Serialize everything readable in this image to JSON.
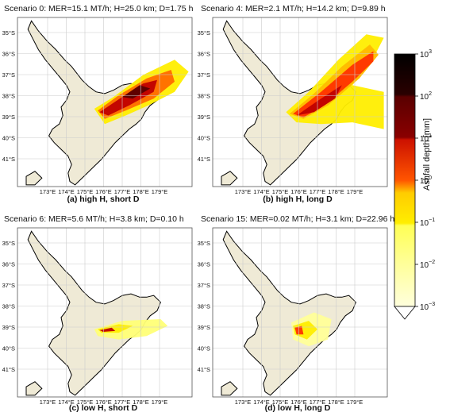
{
  "panels": [
    {
      "title": "Scenario 0:  MER=15.1 MT/h; H=25.0 km; D=1.75 h",
      "caption": "(a) high H, short D"
    },
    {
      "title": "Scenario 4:  MER=2.1 MT/h; H=14.2 km; D=9.89 h",
      "caption": "(b) high H, long D"
    },
    {
      "title": "Scenario 6:  MER=5.6 MT/h; H=3.8 km; D=0.10 h",
      "caption": "(c) low H, short D"
    },
    {
      "title": "Scenario 15:  MER=0.02 MT/h; H=3.1 km; D=22.96 h",
      "caption": "(d) low H, long D"
    }
  ],
  "axes": {
    "lat_ticks": [
      "35°S",
      "36°S",
      "37°S",
      "38°S",
      "39°S",
      "40°S",
      "41°S"
    ],
    "lon_ticks": [
      "173°E",
      "174°E",
      "175°E",
      "176°E",
      "177°E",
      "178°E",
      "179°E"
    ]
  },
  "colorbar": {
    "label": "Ashfall depth [mm]",
    "ticks": [
      {
        "base": "10",
        "exp": "3"
      },
      {
        "base": "10",
        "exp": "2"
      },
      {
        "base": "10",
        "exp": "1"
      },
      {
        "base": "10",
        "exp": "0"
      },
      {
        "base": "10",
        "exp": "−1"
      },
      {
        "base": "10",
        "exp": "−2"
      },
      {
        "base": "10",
        "exp": "−3"
      }
    ],
    "colors": [
      "#000000",
      "#5a0000",
      "#c00000",
      "#ff3300",
      "#ffee00",
      "#ffff77",
      "#ffffcc"
    ]
  },
  "chart_data": {
    "type": "heatmap",
    "note_units": "mm",
    "colorbar_range_log10": [
      -3,
      3
    ],
    "scale": "log",
    "lat_range": [
      "41.5°S",
      "34.5°S"
    ],
    "lon_range": [
      "172.5°E",
      "180°E"
    ],
    "grid": true
  }
}
